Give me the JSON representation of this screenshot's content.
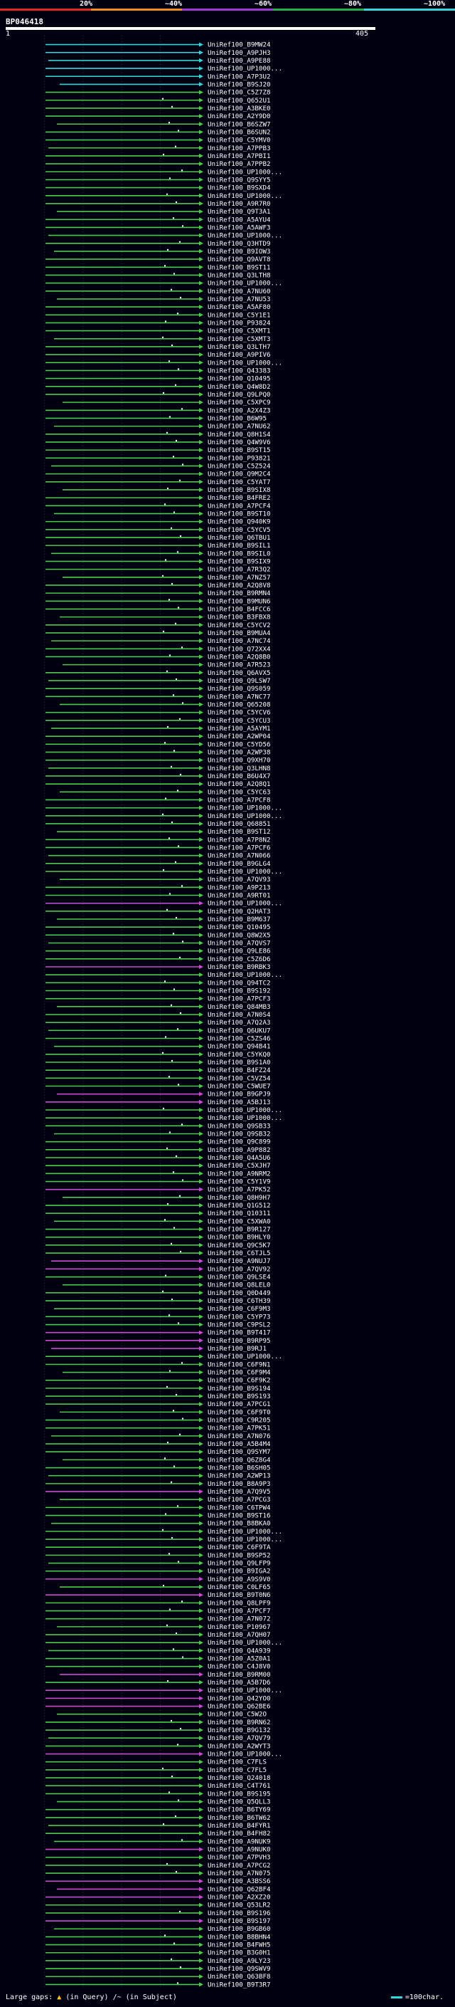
{
  "scale": {
    "segments": [
      {
        "label": "20%",
        "color": "#e8232a"
      },
      {
        "label": "~40%",
        "color": "#f08c1e"
      },
      {
        "label": "~60%",
        "color": "#9b3dd1"
      },
      {
        "label": "~80%",
        "color": "#22b14c"
      },
      {
        "label": "~100%",
        "color": "#33d6d9"
      }
    ]
  },
  "query": {
    "id": "BP046418",
    "start": "1",
    "end": "405"
  },
  "colors": {
    "cyan": "#33d6d9",
    "green": "#4cc94c",
    "magenta": "#c84bd0"
  },
  "hits": [
    {
      "id": "UniRef100_B9MW24",
      "color": "cyan"
    },
    {
      "id": "UniRef100_A9PJH3",
      "color": "cyan"
    },
    {
      "id": "UniRef100_A9PE88",
      "color": "cyan"
    },
    {
      "id": "UniRef100_UP1000...",
      "color": "cyan"
    },
    {
      "id": "UniRef100_A7P3U2",
      "color": "cyan"
    },
    {
      "id": "UniRef100_B9SJ20",
      "color": "cyan"
    },
    {
      "id": "UniRef100_C5Z7Z8",
      "color": "green"
    },
    {
      "id": "UniRef100_Q652U1",
      "color": "green"
    },
    {
      "id": "UniRef100_A3BKE0",
      "color": "green"
    },
    {
      "id": "UniRef100_A2Y9D0",
      "color": "green"
    },
    {
      "id": "UniRef100_B6SZW7",
      "color": "green"
    },
    {
      "id": "UniRef100_B6SUN2",
      "color": "green"
    },
    {
      "id": "UniRef100_C5YMV0",
      "color": "green"
    },
    {
      "id": "UniRef100_A7PPB3",
      "color": "green"
    },
    {
      "id": "UniRef100_A7PBI1",
      "color": "green"
    },
    {
      "id": "UniRef100_A7PPB2",
      "color": "green"
    },
    {
      "id": "UniRef100_UP1000...",
      "color": "green"
    },
    {
      "id": "UniRef100_Q9SYY5",
      "color": "green"
    },
    {
      "id": "UniRef100_B9SXD4",
      "color": "green"
    },
    {
      "id": "UniRef100_UP1000...",
      "color": "green"
    },
    {
      "id": "UniRef100_A9R7R0",
      "color": "green"
    },
    {
      "id": "UniRef100_Q9T3A1",
      "color": "green"
    },
    {
      "id": "UniRef100_A5AYU4",
      "color": "green"
    },
    {
      "id": "UniRef100_A5AWF3",
      "color": "green"
    },
    {
      "id": "UniRef100_UP1000...",
      "color": "green"
    },
    {
      "id": "UniRef100_Q3HTD9",
      "color": "green"
    },
    {
      "id": "UniRef100_B9IOW3",
      "color": "green"
    },
    {
      "id": "UniRef100_Q9AVT8",
      "color": "green"
    },
    {
      "id": "UniRef100_B9ST11",
      "color": "green"
    },
    {
      "id": "UniRef100_Q3LTH8",
      "color": "green"
    },
    {
      "id": "UniRef100_UP1000...",
      "color": "green"
    },
    {
      "id": "UniRef100_A7NU60",
      "color": "green"
    },
    {
      "id": "UniRef100_A7NU53",
      "color": "green"
    },
    {
      "id": "UniRef100_A5AF80",
      "color": "green"
    },
    {
      "id": "UniRef100_C5Y1E1",
      "color": "green"
    },
    {
      "id": "UniRef100_P93824",
      "color": "green"
    },
    {
      "id": "UniRef100_C5XMT1",
      "color": "green"
    },
    {
      "id": "UniRef100_C5XMT3",
      "color": "green"
    },
    {
      "id": "UniRef100_Q3LTH7",
      "color": "green"
    },
    {
      "id": "UniRef100_A9PIV6",
      "color": "green"
    },
    {
      "id": "UniRef100_UP1000...",
      "color": "green"
    },
    {
      "id": "UniRef100_Q43383",
      "color": "green"
    },
    {
      "id": "UniRef100_Q10495",
      "color": "green"
    },
    {
      "id": "UniRef100_Q4W8D2",
      "color": "green"
    },
    {
      "id": "UniRef100_Q9LPQ0",
      "color": "green"
    },
    {
      "id": "UniRef100_C5XPC9",
      "color": "green"
    },
    {
      "id": "UniRef100_A2X4Z3",
      "color": "green"
    },
    {
      "id": "UniRef100_B6W95",
      "color": "green"
    },
    {
      "id": "UniRef100_A7NU62",
      "color": "green"
    },
    {
      "id": "UniRef100_Q8H1S4",
      "color": "green"
    },
    {
      "id": "UniRef100_Q4W9V6",
      "color": "green"
    },
    {
      "id": "UniRef100_B9ST15",
      "color": "green"
    },
    {
      "id": "UniRef100_P93821",
      "color": "green"
    },
    {
      "id": "UniRef100_C5Z524",
      "color": "green"
    },
    {
      "id": "UniRef100_Q9M2C4",
      "color": "green"
    },
    {
      "id": "UniRef100_C5YAT7",
      "color": "green"
    },
    {
      "id": "UniRef100_B9SIX8",
      "color": "green"
    },
    {
      "id": "UniRef100_B4FRE2",
      "color": "green"
    },
    {
      "id": "UniRef100_A7PCF4",
      "color": "green"
    },
    {
      "id": "UniRef100_B9ST10",
      "color": "green"
    },
    {
      "id": "UniRef100_Q940K9",
      "color": "green"
    },
    {
      "id": "UniRef100_C5YCV5",
      "color": "green"
    },
    {
      "id": "UniRef100_Q6TBU1",
      "color": "green"
    },
    {
      "id": "UniRef100_B9SIL1",
      "color": "green"
    },
    {
      "id": "UniRef100_B9SIL0",
      "color": "green"
    },
    {
      "id": "UniRef100_B9SIX9",
      "color": "green"
    },
    {
      "id": "UniRef100_A7R3Q2",
      "color": "green"
    },
    {
      "id": "UniRef100_A7NZ57",
      "color": "green"
    },
    {
      "id": "UniRef100_A2Q8V8",
      "color": "green"
    },
    {
      "id": "UniRef100_B9RMN4",
      "color": "green"
    },
    {
      "id": "UniRef100_B9MUN6",
      "color": "green"
    },
    {
      "id": "UniRef100_B4FCC6",
      "color": "green"
    },
    {
      "id": "UniRef100_B3FBX8",
      "color": "green"
    },
    {
      "id": "UniRef100_C5YCV2",
      "color": "green"
    },
    {
      "id": "UniRef100_B9MUA4",
      "color": "green"
    },
    {
      "id": "UniRef100_A7NC74",
      "color": "green"
    },
    {
      "id": "UniRef100_Q72XX4",
      "color": "green"
    },
    {
      "id": "UniRef100_A2Q8B0",
      "color": "green"
    },
    {
      "id": "UniRef100_A7R523",
      "color": "green"
    },
    {
      "id": "UniRef100_Q6AVX5",
      "color": "green"
    },
    {
      "id": "UniRef100_Q9LSW7",
      "color": "green"
    },
    {
      "id": "UniRef100_Q9S059",
      "color": "green"
    },
    {
      "id": "UniRef100_A7NC77",
      "color": "green"
    },
    {
      "id": "UniRef100_Q65208",
      "color": "green"
    },
    {
      "id": "UniRef100_C5YCV6",
      "color": "green"
    },
    {
      "id": "UniRef100_C5YCU3",
      "color": "green"
    },
    {
      "id": "UniRef100_A5AYM1",
      "color": "green"
    },
    {
      "id": "UniRef100_A2WP04",
      "color": "green"
    },
    {
      "id": "UniRef100_C5YD56",
      "color": "green"
    },
    {
      "id": "UniRef100_A2WP38",
      "color": "green"
    },
    {
      "id": "UniRef100_Q9XH70",
      "color": "green"
    },
    {
      "id": "UniRef100_Q3LHN8",
      "color": "green"
    },
    {
      "id": "UniRef100_B6U4X7",
      "color": "green"
    },
    {
      "id": "UniRef100_A2Q8Q1",
      "color": "green"
    },
    {
      "id": "UniRef100_C5YC63",
      "color": "green"
    },
    {
      "id": "UniRef100_A7PCF8",
      "color": "green"
    },
    {
      "id": "UniRef100_UP1000...",
      "color": "green"
    },
    {
      "id": "UniRef100_UP1000...",
      "color": "green"
    },
    {
      "id": "UniRef100_Q68851",
      "color": "green"
    },
    {
      "id": "UniRef100_B9ST12",
      "color": "green"
    },
    {
      "id": "UniRef100_A7P8N2",
      "color": "green"
    },
    {
      "id": "UniRef100_A7PCF6",
      "color": "green"
    },
    {
      "id": "UniRef100_A7N066",
      "color": "green"
    },
    {
      "id": "UniRef100_B9GLG4",
      "color": "green"
    },
    {
      "id": "UniRef100_UP1000...",
      "color": "green"
    },
    {
      "id": "UniRef100_A7QV93",
      "color": "green"
    },
    {
      "id": "UniRef100_A9P213",
      "color": "green"
    },
    {
      "id": "UniRef100_A9RT01",
      "color": "green"
    },
    {
      "id": "UniRef100_UP1000...",
      "color": "magenta"
    },
    {
      "id": "UniRef100_Q2HAT3",
      "color": "green"
    },
    {
      "id": "UniRef100_B9M637",
      "color": "green"
    },
    {
      "id": "UniRef100_Q10495",
      "color": "green"
    },
    {
      "id": "UniRef100_Q8W2X5",
      "color": "green"
    },
    {
      "id": "UniRef100_A7QVS7",
      "color": "green"
    },
    {
      "id": "UniRef100_Q9LE86",
      "color": "green"
    },
    {
      "id": "UniRef100_C5Z6D6",
      "color": "green"
    },
    {
      "id": "UniRef100_B9RBK3",
      "color": "magenta"
    },
    {
      "id": "UniRef100_UP1000...",
      "color": "green"
    },
    {
      "id": "UniRef100_Q94TC2",
      "color": "green"
    },
    {
      "id": "UniRef100_B9S192",
      "color": "green"
    },
    {
      "id": "UniRef100_A7PCF3",
      "color": "green"
    },
    {
      "id": "UniRef100_Q84MB3",
      "color": "green"
    },
    {
      "id": "UniRef100_A7N0S4",
      "color": "green"
    },
    {
      "id": "UniRef100_A7Q2A3",
      "color": "green"
    },
    {
      "id": "UniRef100_Q6UKU7",
      "color": "green"
    },
    {
      "id": "UniRef100_C5ZS46",
      "color": "green"
    },
    {
      "id": "UniRef100_Q94B41",
      "color": "green"
    },
    {
      "id": "UniRef100_C5YKQ0",
      "color": "green"
    },
    {
      "id": "UniRef100_B9S1A0",
      "color": "green"
    },
    {
      "id": "UniRef100_B4FZ24",
      "color": "green"
    },
    {
      "id": "UniRef100_C5VZ54",
      "color": "green"
    },
    {
      "id": "UniRef100_C5WUE7",
      "color": "green"
    },
    {
      "id": "UniRef100_B9GPJ9",
      "color": "magenta"
    },
    {
      "id": "UniRef100_A5BJ13",
      "color": "magenta"
    },
    {
      "id": "UniRef100_UP1000...",
      "color": "green"
    },
    {
      "id": "UniRef100_UP1000...",
      "color": "green"
    },
    {
      "id": "UniRef100_Q9SB33",
      "color": "green"
    },
    {
      "id": "UniRef100_Q9SB32",
      "color": "green"
    },
    {
      "id": "UniRef100_Q9C899",
      "color": "green"
    },
    {
      "id": "UniRef100_A9P882",
      "color": "green"
    },
    {
      "id": "UniRef100_Q4A5U6",
      "color": "green"
    },
    {
      "id": "UniRef100_C5XJH7",
      "color": "green"
    },
    {
      "id": "UniRef100_A9NRM2",
      "color": "green"
    },
    {
      "id": "UniRef100_C5Y1V9",
      "color": "green"
    },
    {
      "id": "UniRef100_A7PK52",
      "color": "magenta"
    },
    {
      "id": "UniRef100_Q8H9H7",
      "color": "green"
    },
    {
      "id": "UniRef100_Q1G512",
      "color": "green"
    },
    {
      "id": "UniRef100_Q10311",
      "color": "green"
    },
    {
      "id": "UniRef100_C5XWA0",
      "color": "green"
    },
    {
      "id": "UniRef100_B9R127",
      "color": "green"
    },
    {
      "id": "UniRef100_B9HLY0",
      "color": "green"
    },
    {
      "id": "UniRef100_Q9C5K7",
      "color": "green"
    },
    {
      "id": "UniRef100_C6TJL5",
      "color": "green"
    },
    {
      "id": "UniRef100_A9NUJ7",
      "color": "magenta"
    },
    {
      "id": "UniRef100_A7QV92",
      "color": "magenta"
    },
    {
      "id": "UniRef100_Q9LSE4",
      "color": "green"
    },
    {
      "id": "UniRef100_Q8LEL0",
      "color": "green"
    },
    {
      "id": "UniRef100_Q0D449",
      "color": "green"
    },
    {
      "id": "UniRef100_C6TH39",
      "color": "green"
    },
    {
      "id": "UniRef100_C6F9M3",
      "color": "green"
    },
    {
      "id": "UniRef100_C5YP73",
      "color": "green"
    },
    {
      "id": "UniRef100_C9PSL2",
      "color": "green"
    },
    {
      "id": "UniRef100_B9T417",
      "color": "magenta"
    },
    {
      "id": "UniRef100_B9RP95",
      "color": "magenta"
    },
    {
      "id": "UniRef100_B9RJ1",
      "color": "magenta"
    },
    {
      "id": "UniRef100_UP1000...",
      "color": "green"
    },
    {
      "id": "UniRef100_C6F9N1",
      "color": "green"
    },
    {
      "id": "UniRef100_C6F9M4",
      "color": "green"
    },
    {
      "id": "UniRef100_C6F9K2",
      "color": "green"
    },
    {
      "id": "UniRef100_B9S194",
      "color": "green"
    },
    {
      "id": "UniRef100_B9S193",
      "color": "green"
    },
    {
      "id": "UniRef100_A7PCG1",
      "color": "green"
    },
    {
      "id": "UniRef100_C6F9T0",
      "color": "green"
    },
    {
      "id": "UniRef100_C9R205",
      "color": "green"
    },
    {
      "id": "UniRef100_A7PK51",
      "color": "green"
    },
    {
      "id": "UniRef100_A7N076",
      "color": "green"
    },
    {
      "id": "UniRef100_A5B4M4",
      "color": "green"
    },
    {
      "id": "UniRef100_Q9SYM7",
      "color": "green"
    },
    {
      "id": "UniRef100_Q6Z8G4",
      "color": "green"
    },
    {
      "id": "UniRef100_B6SH05",
      "color": "green"
    },
    {
      "id": "UniRef100_A2WP13",
      "color": "green"
    },
    {
      "id": "UniRef100_B8A9P3",
      "color": "green"
    },
    {
      "id": "UniRef100_A7Q9V5",
      "color": "magenta"
    },
    {
      "id": "UniRef100_A7PCG3",
      "color": "green"
    },
    {
      "id": "UniRef100_C6TPW4",
      "color": "green"
    },
    {
      "id": "UniRef100_B9ST16",
      "color": "green"
    },
    {
      "id": "UniRef100_B8BKA0",
      "color": "green"
    },
    {
      "id": "UniRef100_UP1000...",
      "color": "green"
    },
    {
      "id": "UniRef100_UP1000...",
      "color": "green"
    },
    {
      "id": "UniRef100_C6F9TA",
      "color": "green"
    },
    {
      "id": "UniRef100_B9SP52",
      "color": "green"
    },
    {
      "id": "UniRef100_Q9LFP9",
      "color": "green"
    },
    {
      "id": "UniRef100_B9IGA2",
      "color": "green"
    },
    {
      "id": "UniRef100_A9S9V0",
      "color": "magenta"
    },
    {
      "id": "UniRef100_C0LF65",
      "color": "green"
    },
    {
      "id": "UniRef100_B9T0N6",
      "color": "magenta"
    },
    {
      "id": "UniRef100_Q8LPF9",
      "color": "green"
    },
    {
      "id": "UniRef100_A7PCF7",
      "color": "green"
    },
    {
      "id": "UniRef100_A7N072",
      "color": "green"
    },
    {
      "id": "UniRef100_P10967",
      "color": "green"
    },
    {
      "id": "UniRef100_A7QH07",
      "color": "green"
    },
    {
      "id": "UniRef100_UP1000...",
      "color": "green"
    },
    {
      "id": "UniRef100_Q4A939",
      "color": "green"
    },
    {
      "id": "UniRef100_A5Z0A1",
      "color": "green"
    },
    {
      "id": "UniRef100_C4J8V0",
      "color": "green"
    },
    {
      "id": "UniRef100_B9RM00",
      "color": "magenta"
    },
    {
      "id": "UniRef100_A5B7D6",
      "color": "green"
    },
    {
      "id": "UniRef100_UP1000...",
      "color": "magenta"
    },
    {
      "id": "UniRef100_Q42YO0",
      "color": "magenta"
    },
    {
      "id": "UniRef100_Q62BE6",
      "color": "magenta"
    },
    {
      "id": "UniRef100_C5W2O",
      "color": "green"
    },
    {
      "id": "UniRef100_B9RN62",
      "color": "green"
    },
    {
      "id": "UniRef100_B9G132",
      "color": "green"
    },
    {
      "id": "UniRef100_A7QV79",
      "color": "green"
    },
    {
      "id": "UniRef100_A2WYT3",
      "color": "green"
    },
    {
      "id": "UniRef100_UP1000...",
      "color": "magenta"
    },
    {
      "id": "UniRef100_C7FLS",
      "color": "green"
    },
    {
      "id": "UniRef100_C7FL5",
      "color": "green"
    },
    {
      "id": "UniRef100_Q24018",
      "color": "green"
    },
    {
      "id": "UniRef100_C4T761",
      "color": "green"
    },
    {
      "id": "UniRef100_B9S195",
      "color": "green"
    },
    {
      "id": "UniRef100_Q5QLL3",
      "color": "green"
    },
    {
      "id": "UniRef100_B6TY69",
      "color": "green"
    },
    {
      "id": "UniRef100_B6TW62",
      "color": "green"
    },
    {
      "id": "UniRef100_B4FYR1",
      "color": "green"
    },
    {
      "id": "UniRef100_B4FH82",
      "color": "green"
    },
    {
      "id": "UniRef100_A9NUK9",
      "color": "green"
    },
    {
      "id": "UniRef100_A9NUK0",
      "color": "magenta"
    },
    {
      "id": "UniRef100_A7PVH3",
      "color": "green"
    },
    {
      "id": "UniRef100_A7PCG2",
      "color": "green"
    },
    {
      "id": "UniRef100_A7N075",
      "color": "green"
    },
    {
      "id": "UniRef100_A3BSS6",
      "color": "magenta"
    },
    {
      "id": "UniRef100_Q62BF4",
      "color": "magenta"
    },
    {
      "id": "UniRef100_A2XZ20",
      "color": "magenta"
    },
    {
      "id": "UniRef100_Q53LR2",
      "color": "green"
    },
    {
      "id": "UniRef100_B9S196",
      "color": "green"
    },
    {
      "id": "UniRef100_B9S197",
      "color": "magenta"
    },
    {
      "id": "UniRef100_B9GB60",
      "color": "green"
    },
    {
      "id": "UniRef100_B8BHN4",
      "color": "green"
    },
    {
      "id": "UniRef100_B4FWH5",
      "color": "green"
    },
    {
      "id": "UniRef100_B3G0H1",
      "color": "green"
    },
    {
      "id": "UniRef100_A9LY23",
      "color": "green"
    },
    {
      "id": "UniRef100_Q9SWV9",
      "color": "green"
    },
    {
      "id": "UniRef100_Q63BF8",
      "color": "green"
    },
    {
      "id": "UniRef100_B9T3R7",
      "color": "green"
    }
  ],
  "legend": {
    "gaps_label": "Large gaps:",
    "query_gap": "(in Query)",
    "subject_gap": "/~ (in Subject)",
    "query_gap_symbol": "▲",
    "scale_note": "=100char."
  }
}
